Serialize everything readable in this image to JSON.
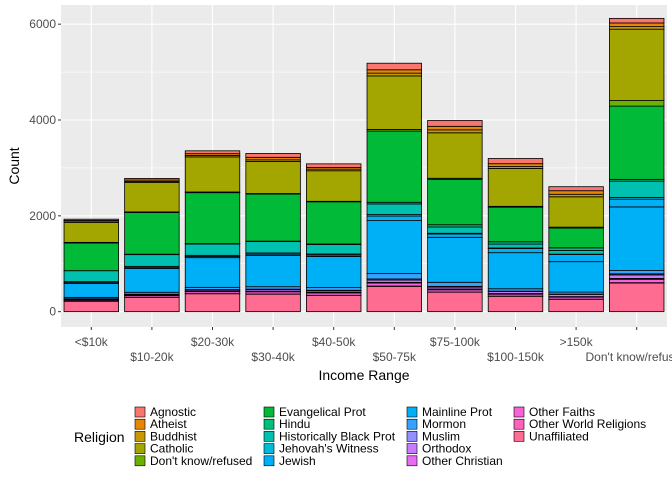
{
  "chart_data": {
    "type": "bar",
    "stacked": true,
    "xlabel": "Income Range",
    "ylabel": "Count",
    "ylim": [
      0,
      6400
    ],
    "y_ticks": [
      0,
      2000,
      4000,
      6000
    ],
    "grid": true,
    "legend_position": "bottom",
    "legend_title": "Religion",
    "categories": [
      "<$10k",
      "$10-20k",
      "$20-30k",
      "$30-40k",
      "$40-50k",
      "$50-75k",
      "$75-100k",
      "$100-150k",
      ">150k",
      "Don't know/refused"
    ],
    "series": [
      {
        "name": "Agnostic",
        "color": "#F8766D",
        "values": [
          27,
          34,
          60,
          81,
          76,
          137,
          122,
          109,
          84,
          96
        ]
      },
      {
        "name": "Atheist",
        "color": "#E58700",
        "values": [
          12,
          27,
          37,
          52,
          35,
          70,
          73,
          59,
          74,
          76
        ]
      },
      {
        "name": "Buddhist",
        "color": "#C99800",
        "values": [
          27,
          21,
          30,
          34,
          33,
          58,
          62,
          39,
          53,
          54
        ]
      },
      {
        "name": "Catholic",
        "color": "#A3A500",
        "values": [
          418,
          617,
          732,
          670,
          638,
          1116,
          949,
          792,
          633,
          1489
        ]
      },
      {
        "name": "Don't know/refused",
        "color": "#6BB100",
        "values": [
          15,
          14,
          15,
          11,
          10,
          35,
          21,
          17,
          18,
          116
        ]
      },
      {
        "name": "Evangelical Prot",
        "color": "#00BA38",
        "values": [
          575,
          869,
          1064,
          982,
          881,
          1486,
          949,
          723,
          414,
          1529
        ]
      },
      {
        "name": "Hindu",
        "color": "#00BF7D",
        "values": [
          1,
          9,
          7,
          9,
          11,
          34,
          47,
          48,
          54,
          37
        ]
      },
      {
        "name": "Historically Black Prot",
        "color": "#00C0AF",
        "values": [
          228,
          244,
          236,
          238,
          197,
          223,
          131,
          81,
          78,
          339
        ]
      },
      {
        "name": "Jehovah's Witness",
        "color": "#00BCD8",
        "values": [
          20,
          27,
          24,
          24,
          21,
          30,
          15,
          11,
          6,
          37
        ]
      },
      {
        "name": "Jewish",
        "color": "#00B0F6",
        "values": [
          19,
          19,
          25,
          25,
          30,
          95,
          69,
          87,
          151,
          162
        ]
      },
      {
        "name": "Mainline Prot",
        "color": "#00B0F6",
        "values": [
          289,
          495,
          619,
          655,
          651,
          1107,
          939,
          753,
          634,
          1328
        ]
      },
      {
        "name": "Mormon",
        "color": "#35A2FF",
        "values": [
          29,
          40,
          48,
          51,
          56,
          112,
          85,
          49,
          42,
          69
        ]
      },
      {
        "name": "Muslim",
        "color": "#9590FF",
        "values": [
          6,
          7,
          9,
          10,
          9,
          23,
          16,
          8,
          6,
          22
        ]
      },
      {
        "name": "Orthodox",
        "color": "#C77CFF",
        "values": [
          13,
          17,
          23,
          32,
          32,
          47,
          38,
          42,
          46,
          73
        ]
      },
      {
        "name": "Other Christian",
        "color": "#E76BF3",
        "values": [
          9,
          7,
          11,
          13,
          13,
          14,
          18,
          14,
          12,
          18
        ]
      },
      {
        "name": "Other Faiths",
        "color": "#FA62DB",
        "values": [
          20,
          33,
          40,
          46,
          49,
          63,
          46,
          40,
          41,
          71
        ]
      },
      {
        "name": "Other World Religions",
        "color": "#FF62BC",
        "values": [
          5,
          2,
          3,
          4,
          2,
          7,
          3,
          4,
          4,
          8
        ]
      },
      {
        "name": "Unaffiliated",
        "color": "#FF6C91",
        "values": [
          217,
          299,
          374,
          365,
          341,
          528,
          407,
          321,
          258,
          597
        ]
      }
    ]
  }
}
